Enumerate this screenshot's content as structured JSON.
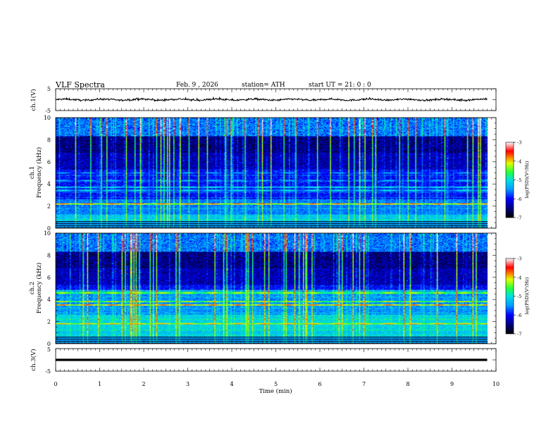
{
  "header": {
    "title": "VLF  Spectra",
    "date": "Feb. 9  , 2026",
    "station": "station= ATH",
    "start": "start  UT  =   21: 0  : 0"
  },
  "chart_data": [
    {
      "type": "line",
      "id": "ch1-waveform",
      "ylabel": "ch.1(V)",
      "ylim": [
        -5,
        5
      ],
      "yticks": [
        "5",
        "-5"
      ],
      "xlim": [
        0,
        10
      ],
      "baseline": 0,
      "approx_amplitude": 0.7,
      "series": [
        {
          "name": "ch.1",
          "mean": 0
        }
      ]
    },
    {
      "type": "heatmap",
      "id": "ch1-spectrogram",
      "ylabel": "ch.1\nFrequency (kHz)",
      "ylabel_top": "ch.1",
      "ylabel_bottom": "Frequency (kHz)",
      "ylim": [
        0,
        10
      ],
      "yticks": [
        "0",
        "2",
        "4",
        "6",
        "8",
        "10"
      ],
      "xlim": [
        0,
        10
      ],
      "data_end_min": 9.8,
      "colorbar": {
        "label": "log(PSD)(V²/Hz)",
        "range": [
          -7,
          -3
        ],
        "ticks": [
          "-3",
          "-4",
          "-5",
          "-6",
          "-7"
        ]
      },
      "bands": [
        {
          "freq": 2.2,
          "level": -4.3
        },
        {
          "freq": 3.4,
          "level": -5.4
        },
        {
          "freq": 3.7,
          "level": -5.3
        },
        {
          "freq": 4.3,
          "level": -5.6
        },
        {
          "freq": 5.0,
          "level": -5.7
        }
      ]
    },
    {
      "type": "heatmap",
      "id": "ch2-spectrogram",
      "ylabel": "ch.2\nFrequency (kHz)",
      "ylabel_top": "ch.2",
      "ylabel_bottom": "Frequency (kHz)",
      "ylim": [
        0,
        10
      ],
      "yticks": [
        "0",
        "2",
        "4",
        "6",
        "8",
        "10"
      ],
      "xlim": [
        0,
        10
      ],
      "data_end_min": 9.8,
      "colorbar": {
        "label": "log(PSD)(V²/Hz)",
        "range": [
          -7,
          -3
        ],
        "ticks": [
          "-3",
          "-4",
          "-5",
          "-6",
          "-7"
        ]
      },
      "bands": [
        {
          "freq": 1.8,
          "level": -4.4
        },
        {
          "freq": 3.5,
          "level": -4.1
        },
        {
          "freq": 3.8,
          "level": -4.6
        },
        {
          "freq": 4.6,
          "level": -4.6
        }
      ]
    },
    {
      "type": "line",
      "id": "ch3-waveform",
      "ylabel": "ch.3(V)",
      "ylim": [
        -5,
        5
      ],
      "yticks": [
        "5",
        "-5"
      ],
      "xlim": [
        0,
        10
      ],
      "baseline": 0,
      "approx_amplitude": 0.15,
      "series": [
        {
          "name": "ch.3",
          "mean": 0
        }
      ]
    }
  ],
  "xaxis": {
    "label": "Time  (min)",
    "ticks": [
      "0",
      "1",
      "2",
      "3",
      "4",
      "5",
      "6",
      "7",
      "8",
      "9",
      "10"
    ],
    "range": [
      0,
      10
    ]
  }
}
